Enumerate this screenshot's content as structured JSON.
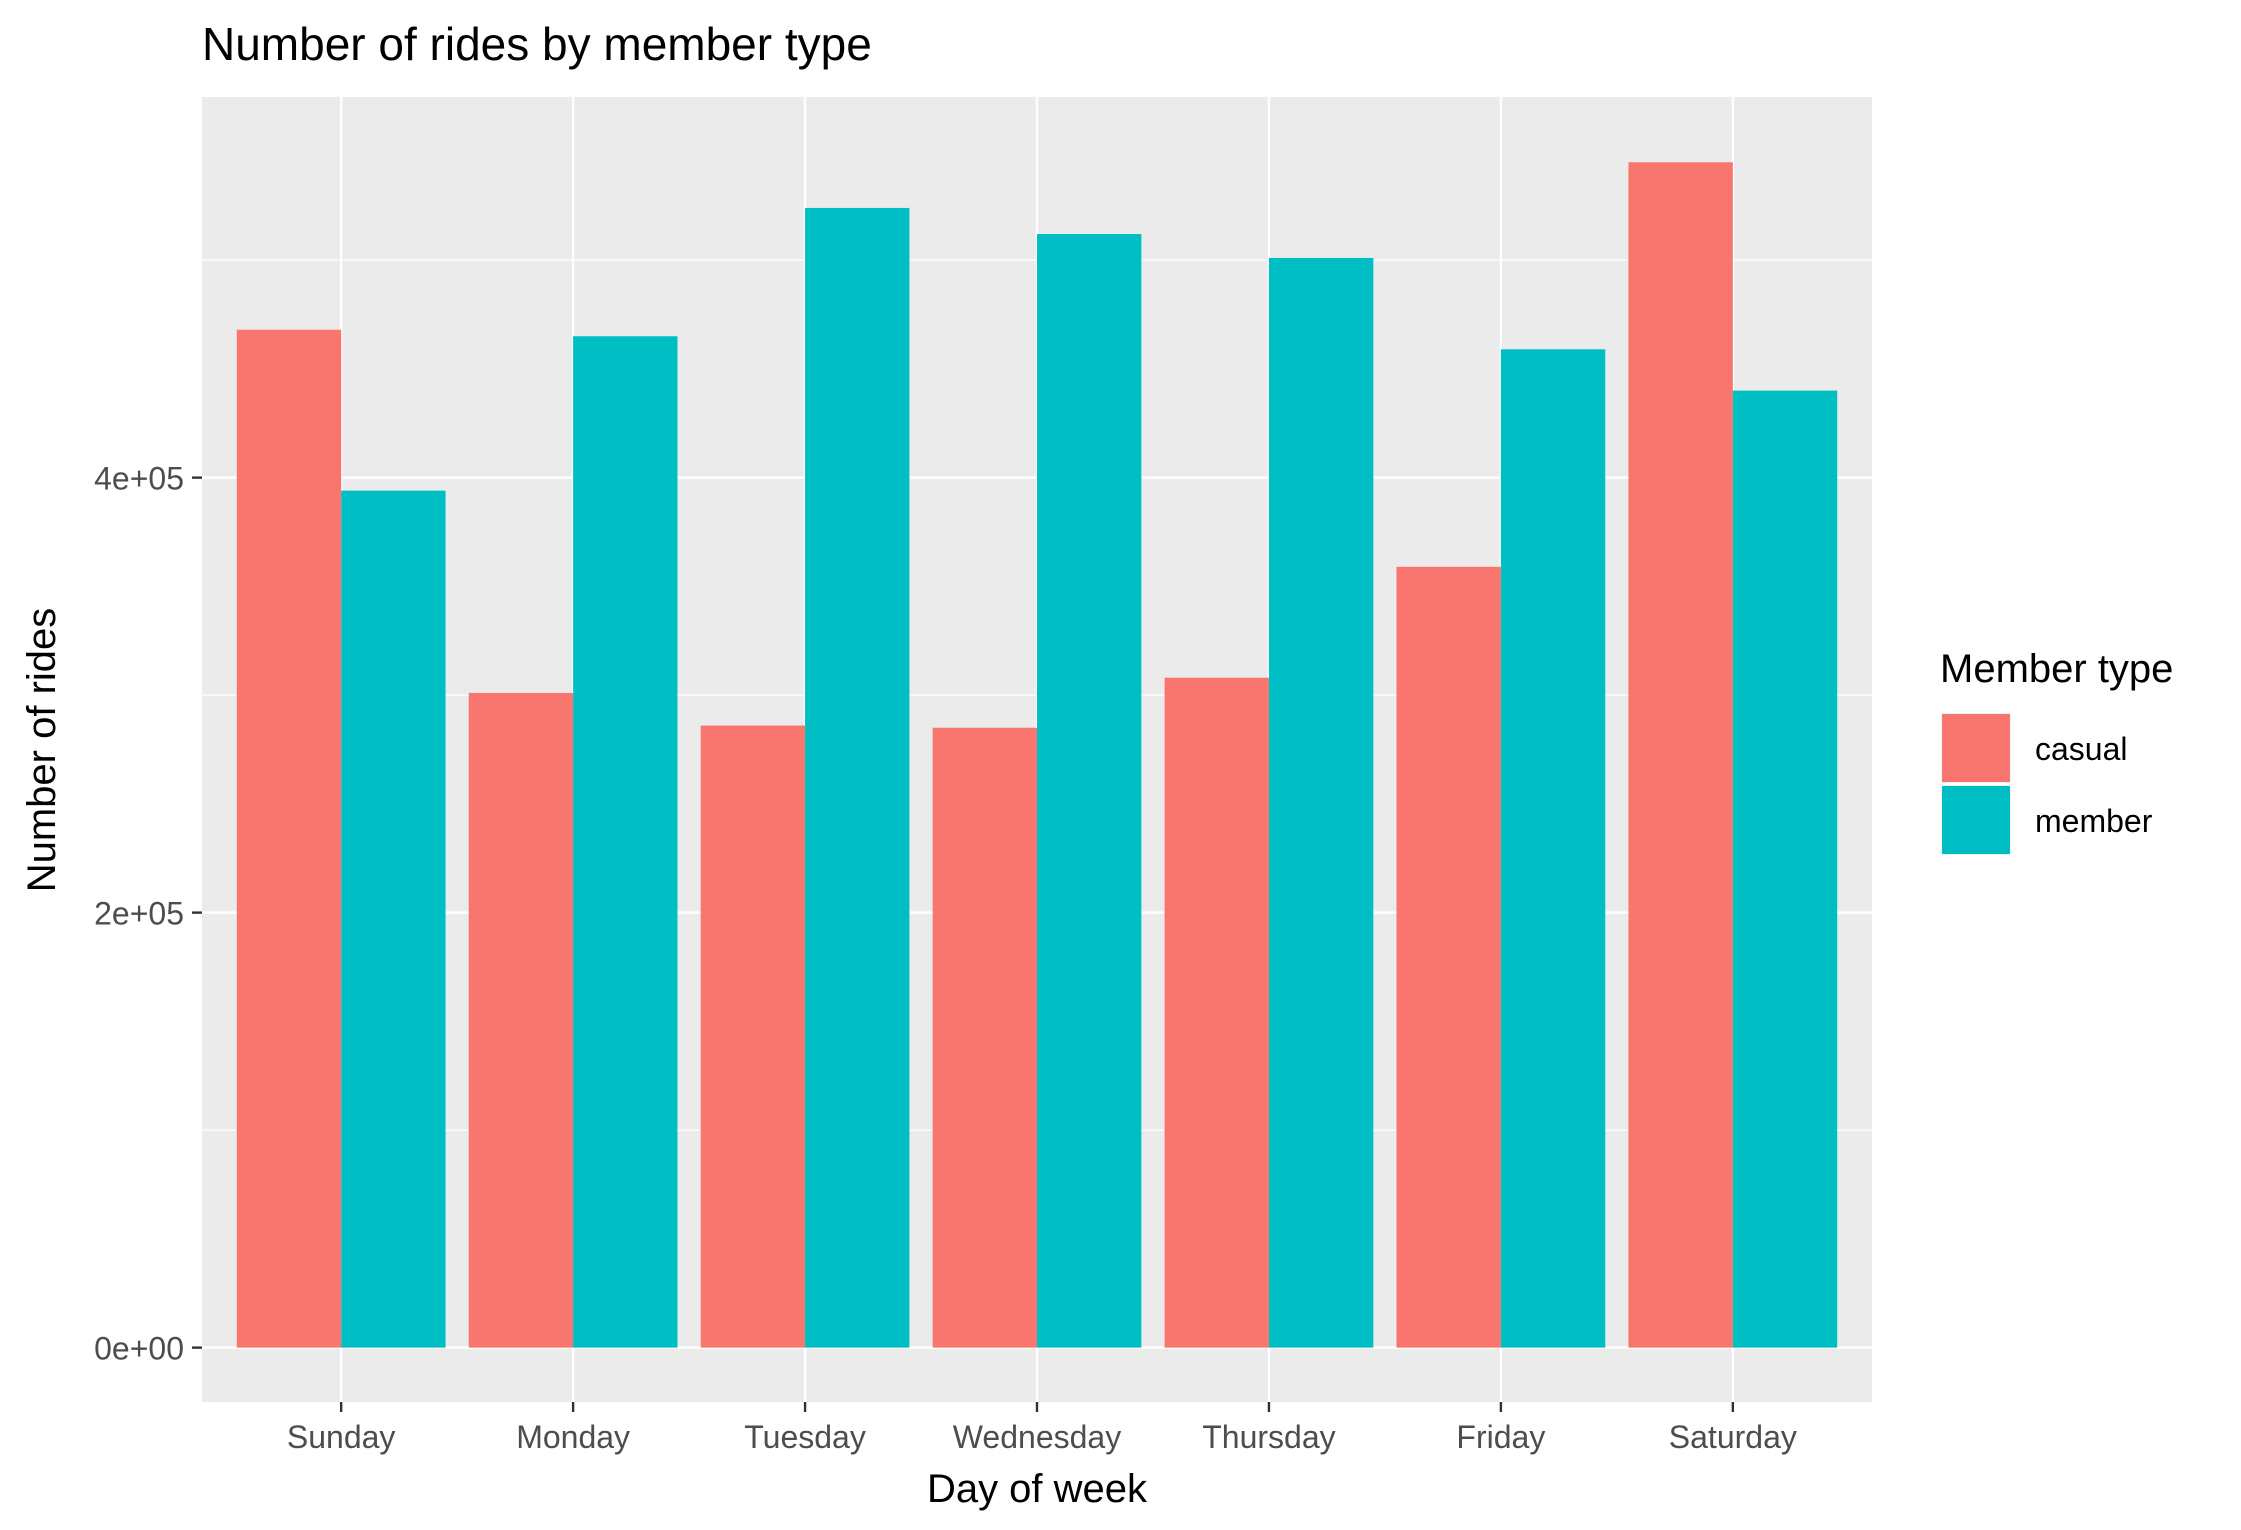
{
  "chart_data": {
    "type": "bar",
    "title": "Number of rides by member type",
    "xlabel": "Day of week",
    "ylabel": "Number of rides",
    "categories": [
      "Sunday",
      "Monday",
      "Tuesday",
      "Wednesday",
      "Thursday",
      "Friday",
      "Saturday"
    ],
    "series": [
      {
        "name": "casual",
        "color": "#F8766D",
        "values": [
          468000,
          301000,
          286000,
          285000,
          308000,
          359000,
          545000
        ]
      },
      {
        "name": "member",
        "color": "#00BFC4",
        "values": [
          394000,
          465000,
          524000,
          512000,
          501000,
          459000,
          440000
        ]
      }
    ],
    "ylim": [
      -25000,
      575000
    ],
    "y_ticks": [
      0,
      200000,
      400000
    ],
    "y_tick_labels": [
      "0e+00",
      "2e+05",
      "4e+05"
    ],
    "y_minor_ticks": [
      100000,
      300000,
      500000
    ],
    "legend": {
      "title": "Member type",
      "placement": "right",
      "items": [
        "casual",
        "member"
      ]
    },
    "grid": true,
    "panel_background": "#EBEBEB",
    "grid_color": "#FFFFFF"
  }
}
